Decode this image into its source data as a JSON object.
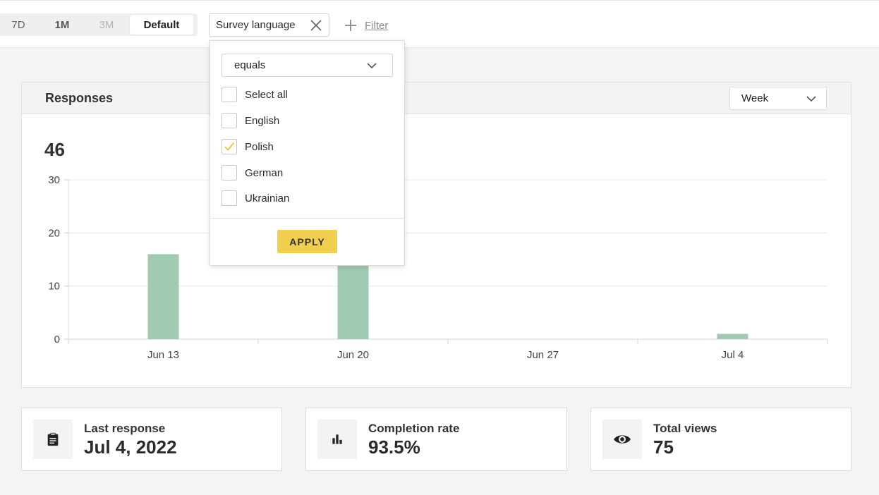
{
  "toolbar": {
    "ranges": [
      "7D",
      "1M",
      "3M",
      "Default"
    ],
    "active_range": "Default",
    "filter_chip_label": "Survey language",
    "add_filter_label": "Filter"
  },
  "filter_dropdown": {
    "operator": "equals",
    "options": [
      {
        "label": "Select all",
        "checked": false
      },
      {
        "label": "English",
        "checked": false
      },
      {
        "label": "Polish",
        "checked": true
      },
      {
        "label": "German",
        "checked": false
      },
      {
        "label": "Ukrainian",
        "checked": false
      }
    ],
    "apply_label": "APPLY",
    "apply_color": "#efcf4d",
    "check_color": "#efbf2f"
  },
  "responses_card": {
    "title": "Responses",
    "interval": "Week",
    "total": "46"
  },
  "chart_data": {
    "type": "bar",
    "categories": [
      "Jun 13",
      "Jun 20",
      "Jun 27",
      "Jul 4"
    ],
    "values": [
      16,
      14,
      0,
      1
    ],
    "yticks": [
      "0",
      "10",
      "20",
      "30"
    ],
    "ylim": [
      0,
      30
    ],
    "grid": true,
    "bar_color": "#9ecbb2",
    "xlabel": "",
    "ylabel": ""
  },
  "stats": [
    {
      "label": "Last response",
      "value": "Jul 4, 2022",
      "icon": "clipboard-icon"
    },
    {
      "label": "Completion rate",
      "value": "93.5%",
      "icon": "bar-chart-icon"
    },
    {
      "label": "Total views",
      "value": "75",
      "icon": "eye-icon"
    }
  ]
}
